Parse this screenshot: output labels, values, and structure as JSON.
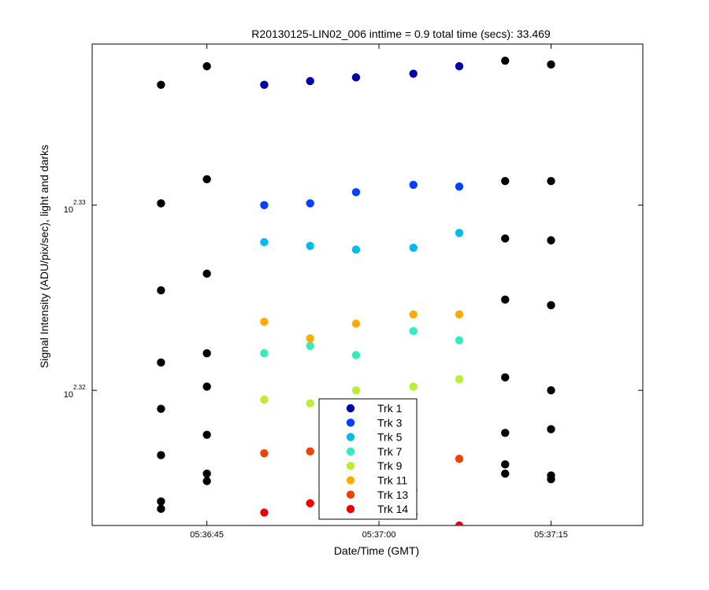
{
  "chart_data": {
    "type": "scatter",
    "title": "R20130125-LIN02_006 inttime = 0.9 total time (secs): 33.469",
    "xlabel": "Date/Time (GMT)",
    "ylabel": "Signal Intensity (ADU/pix/sec), light and darks",
    "xaxis": "time",
    "x_ticks": [
      "05:36:45",
      "05:37:00",
      "05:37:15"
    ],
    "xlim": [
      "05:36:35",
      "05:37:23"
    ],
    "yscale": "log",
    "y_ticks": [
      {
        "value": 2.32,
        "base": "10",
        "exponent": "2.32"
      },
      {
        "value": 2.33,
        "base": "10",
        "exponent": "2.33"
      }
    ],
    "ylim_log10": [
      2.3127,
      2.3387
    ],
    "grid": false,
    "legend_position": "bottom-center",
    "marker_color_darks": "#000000",
    "darks": [
      {
        "x": "05:36:41",
        "y_log10": [
          2.3365,
          2.3301,
          2.3254,
          2.3215,
          2.319,
          2.3165,
          2.314,
          2.3136
        ]
      },
      {
        "x": "05:36:45",
        "y_log10": [
          2.3375,
          2.3314,
          2.3263,
          2.322,
          2.3202,
          2.3176,
          2.3155,
          2.3151
        ]
      },
      {
        "x": "05:37:11",
        "y_log10": [
          2.3378,
          2.3313,
          2.3282,
          2.3249,
          2.3207,
          2.3177,
          2.316,
          2.3155
        ]
      },
      {
        "x": "05:37:15",
        "y_log10": [
          2.3376,
          2.3313,
          2.3281,
          2.3246,
          2.32,
          2.3179,
          2.3154,
          2.3152
        ]
      }
    ],
    "series": [
      {
        "name": "Trk 1",
        "color": "#0000aa",
        "x": [
          "05:36:50",
          "05:36:54",
          "05:36:58",
          "05:37:03",
          "05:37:07"
        ],
        "y_log10": [
          2.3365,
          2.3367,
          2.3369,
          2.3371,
          2.3375
        ]
      },
      {
        "name": "Trk 3",
        "color": "#0040ff",
        "x": [
          "05:36:50",
          "05:36:54",
          "05:36:58",
          "05:37:03",
          "05:37:07"
        ],
        "y_log10": [
          2.33,
          2.3301,
          2.3307,
          2.3311,
          2.331
        ]
      },
      {
        "name": "Trk 5",
        "color": "#00bbee",
        "x": [
          "05:36:50",
          "05:36:54",
          "05:36:58",
          "05:37:03",
          "05:37:07"
        ],
        "y_log10": [
          2.328,
          2.3278,
          2.3276,
          2.3277,
          2.3285
        ]
      },
      {
        "name": "Trk 7",
        "color": "#33eebb",
        "x": [
          "05:36:50",
          "05:36:54",
          "05:36:58",
          "05:37:03",
          "05:37:07"
        ],
        "y_log10": [
          2.322,
          2.3224,
          2.3219,
          2.3232,
          2.3227
        ]
      },
      {
        "name": "Trk 9",
        "color": "#bbee33",
        "x": [
          "05:36:50",
          "05:36:54",
          "05:36:58",
          "05:37:03",
          "05:37:07"
        ],
        "y_log10": [
          2.3195,
          2.3193,
          2.32,
          2.3202,
          2.3206
        ]
      },
      {
        "name": "Trk 11",
        "color": "#ffaa00",
        "x": [
          "05:36:50",
          "05:36:54",
          "05:36:58",
          "05:37:03",
          "05:37:07"
        ],
        "y_log10": [
          2.3237,
          2.3228,
          2.3236,
          2.3241,
          2.3241
        ]
      },
      {
        "name": "Trk 13",
        "color": "#ee4400",
        "x": [
          "05:36:50",
          "05:36:54",
          "05:36:58",
          "05:37:03",
          "05:37:07"
        ],
        "y_log10": [
          2.3166,
          2.3167,
          2.3153,
          2.3146,
          2.3163
        ]
      },
      {
        "name": "Trk 14",
        "color": "#ee0000",
        "x": [
          "05:36:50",
          "05:36:54",
          "05:36:58",
          "05:37:03",
          "05:37:07"
        ],
        "y_log10": [
          2.3134,
          2.3139,
          2.3145,
          2.3133,
          2.3127
        ]
      }
    ]
  }
}
